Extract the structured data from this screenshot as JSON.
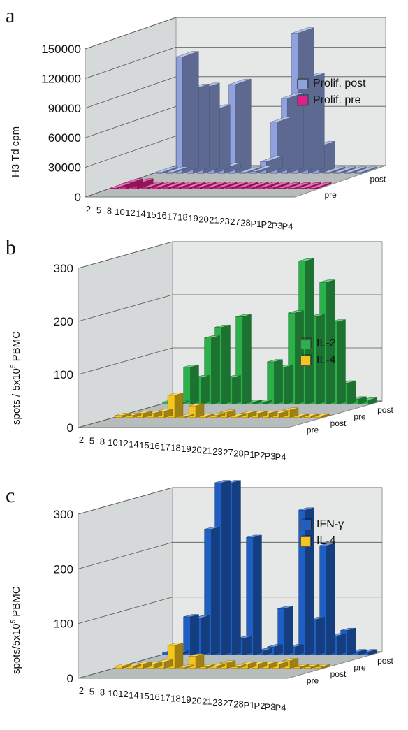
{
  "chart_data": [
    {
      "panel": "a",
      "type": "bar",
      "ylabel": "H3 Td cpm",
      "ylim": [
        0,
        150000
      ],
      "yticks": [
        "0",
        "30000",
        "60000",
        "90000",
        "120000",
        "150000"
      ],
      "categories": [
        "2",
        "5",
        "8",
        "10",
        "12",
        "14",
        "15",
        "16",
        "17",
        "18",
        "19",
        "20",
        "21",
        "23",
        "27",
        "28",
        "P1",
        "P2",
        "P3",
        "P4"
      ],
      "depth_labels": [
        "pre",
        "post"
      ],
      "series": [
        {
          "name": "Prolif. post",
          "color": "#8fa2df",
          "row": 1,
          "values": [
            0,
            0,
            118000,
            85000,
            86000,
            64000,
            5000,
            90000,
            1000,
            2000,
            12000,
            52000,
            76000,
            142000,
            96000,
            27000,
            0,
            0,
            0,
            0
          ]
        },
        {
          "name": "Prolif. pre",
          "color": "#e0208a",
          "row": 0,
          "values": [
            0,
            5000,
            5000,
            1500,
            1500,
            1500,
            1500,
            1500,
            1500,
            1500,
            1500,
            1500,
            1500,
            1500,
            1500,
            1500,
            0,
            0,
            0,
            0
          ]
        }
      ],
      "legend_position": "top-right"
    },
    {
      "panel": "b",
      "type": "bar",
      "ylabel": "spots / 5x10",
      "ylabel_sup": "5",
      "ylabel_tail": " PBMC",
      "ylim": [
        0,
        300
      ],
      "yticks": [
        "0",
        "100",
        "200",
        "300"
      ],
      "categories": [
        "2",
        "5",
        "8",
        "10",
        "12",
        "14",
        "15",
        "16",
        "17",
        "18",
        "19",
        "20",
        "21",
        "23",
        "27",
        "28",
        "P1",
        "P2",
        "P3",
        "P4"
      ],
      "depth_labels": [
        "pre",
        "post",
        "pre",
        "post"
      ],
      "series": [
        {
          "name": "IL-2",
          "color": "#2bb04a",
          "row": 3,
          "values": [
            4,
            2,
            70,
            50,
            125,
            145,
            50,
            165,
            4,
            4,
            80,
            70,
            172,
            270,
            165,
            230,
            155,
            40,
            10,
            8
          ]
        },
        {
          "name": "IL-4",
          "color": "#f4c51c",
          "row": 1,
          "values": [
            4,
            4,
            8,
            8,
            12,
            42,
            2,
            22,
            3,
            4,
            10,
            3,
            8,
            8,
            8,
            8,
            14,
            3,
            3,
            3
          ]
        }
      ],
      "legend_position": "top-right"
    },
    {
      "panel": "c",
      "type": "bar",
      "ylabel": "spots/5x10",
      "ylabel_sup": "5",
      "ylabel_tail": " PBMC",
      "ylim": [
        0,
        300
      ],
      "yticks": [
        "0",
        "100",
        "200",
        "300"
      ],
      "categories": [
        "2",
        "5",
        "8",
        "10",
        "12",
        "14",
        "15",
        "16",
        "17",
        "18",
        "19",
        "20",
        "21",
        "23",
        "27",
        "28",
        "P1",
        "P2",
        "P3",
        "P4"
      ],
      "depth_labels": [
        "pre",
        "post",
        "pre",
        "post"
      ],
      "series": [
        {
          "name": "IFN-γ",
          "color": "#1f5fc4",
          "row": 3,
          "values": [
            4,
            4,
            70,
            68,
            230,
            315,
            315,
            30,
            215,
            8,
            15,
            85,
            15,
            265,
            65,
            200,
            35,
            45,
            6,
            6
          ]
        },
        {
          "name": "IL-4",
          "color": "#f4c51c",
          "row": 1,
          "values": [
            4,
            4,
            8,
            8,
            12,
            42,
            2,
            22,
            3,
            4,
            10,
            3,
            8,
            8,
            8,
            8,
            14,
            3,
            3,
            3
          ]
        }
      ],
      "legend_position": "top-right"
    }
  ],
  "panel_letters": [
    "a",
    "b",
    "c"
  ]
}
